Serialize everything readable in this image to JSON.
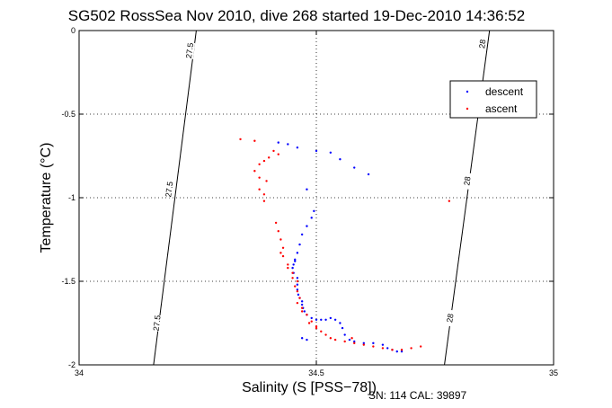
{
  "chart_data": {
    "type": "scatter",
    "title": "SG502 RossSea Nov 2010, dive 268 started 19-Dec-2010 14:36:52",
    "xlabel": "Salinity (S [PSS−78])",
    "ylabel": "Temperature (°C)",
    "xlim": [
      34,
      35
    ],
    "ylim": [
      -2,
      0
    ],
    "xticks": [
      "34",
      "34.5",
      "35"
    ],
    "yticks": [
      "0",
      "-0.5",
      "-1",
      "-1.5",
      "-2"
    ],
    "xtick_values": [
      34,
      34.5,
      35
    ],
    "ytick_values": [
      0,
      -0.5,
      -1,
      -1.5,
      -2
    ],
    "grid": true,
    "legend_position": "top-right",
    "footnote": "SN: 114  CAL: 39897",
    "contours": [
      {
        "label": "27.5",
        "points": [
          [
            34.157,
            -2
          ],
          [
            34.247,
            0
          ]
        ],
        "label_positions": [
          [
            34.233,
            -0.12
          ],
          [
            34.19,
            -0.95
          ],
          [
            34.164,
            -1.75
          ]
        ]
      },
      {
        "label": "28",
        "points": [
          [
            34.77,
            -2
          ],
          [
            34.865,
            0
          ]
        ],
        "label_positions": [
          [
            34.85,
            -0.08
          ],
          [
            34.818,
            -0.9
          ],
          [
            34.782,
            -1.72
          ]
        ]
      }
    ],
    "series": [
      {
        "name": "descent",
        "color": "#0000ff",
        "points": [
          [
            34.42,
            -0.67
          ],
          [
            34.44,
            -0.68
          ],
          [
            34.46,
            -0.7
          ],
          [
            34.5,
            -0.72
          ],
          [
            34.53,
            -0.73
          ],
          [
            34.55,
            -0.77
          ],
          [
            34.58,
            -0.82
          ],
          [
            34.61,
            -0.86
          ],
          [
            34.48,
            -0.95
          ],
          [
            34.495,
            -1.08
          ],
          [
            34.49,
            -1.12
          ],
          [
            34.48,
            -1.17
          ],
          [
            34.47,
            -1.22
          ],
          [
            34.465,
            -1.28
          ],
          [
            34.46,
            -1.33
          ],
          [
            34.455,
            -1.37
          ],
          [
            34.452,
            -1.4
          ],
          [
            34.45,
            -1.42
          ],
          [
            34.452,
            -1.45
          ],
          [
            34.46,
            -1.48
          ],
          [
            34.46,
            -1.55
          ],
          [
            34.462,
            -1.58
          ],
          [
            34.465,
            -1.6
          ],
          [
            34.47,
            -1.62
          ],
          [
            34.47,
            -1.64
          ],
          [
            34.472,
            -1.66
          ],
          [
            34.475,
            -1.68
          ],
          [
            34.48,
            -1.7
          ],
          [
            34.49,
            -1.72
          ],
          [
            34.5,
            -1.73
          ],
          [
            34.51,
            -1.73
          ],
          [
            34.52,
            -1.73
          ],
          [
            34.53,
            -1.72
          ],
          [
            34.54,
            -1.73
          ],
          [
            34.55,
            -1.75
          ],
          [
            34.555,
            -1.78
          ],
          [
            34.56,
            -1.82
          ],
          [
            34.57,
            -1.85
          ],
          [
            34.58,
            -1.86
          ],
          [
            34.6,
            -1.87
          ],
          [
            34.62,
            -1.87
          ],
          [
            34.64,
            -1.88
          ],
          [
            34.65,
            -1.9
          ],
          [
            34.66,
            -1.91
          ],
          [
            34.67,
            -1.92
          ],
          [
            34.68,
            -1.92
          ],
          [
            34.47,
            -1.84
          ],
          [
            34.48,
            -1.85
          ],
          [
            34.46,
            -1.52
          ],
          [
            34.455,
            -1.38
          ]
        ]
      },
      {
        "name": "ascent",
        "color": "#ff0000",
        "points": [
          [
            34.34,
            -0.65
          ],
          [
            34.37,
            -0.66
          ],
          [
            34.41,
            -0.72
          ],
          [
            34.42,
            -0.74
          ],
          [
            34.4,
            -0.76
          ],
          [
            34.39,
            -0.78
          ],
          [
            34.38,
            -0.8
          ],
          [
            34.37,
            -0.84
          ],
          [
            34.38,
            -0.88
          ],
          [
            34.395,
            -0.9
          ],
          [
            34.38,
            -0.95
          ],
          [
            34.39,
            -0.98
          ],
          [
            34.39,
            -1.02
          ],
          [
            34.415,
            -1.15
          ],
          [
            34.42,
            -1.2
          ],
          [
            34.425,
            -1.25
          ],
          [
            34.43,
            -1.3
          ],
          [
            34.425,
            -1.33
          ],
          [
            34.43,
            -1.35
          ],
          [
            34.44,
            -1.4
          ],
          [
            34.45,
            -1.45
          ],
          [
            34.45,
            -1.48
          ],
          [
            34.46,
            -1.5
          ],
          [
            34.455,
            -1.53
          ],
          [
            34.46,
            -1.56
          ],
          [
            34.465,
            -1.6
          ],
          [
            34.46,
            -1.63
          ],
          [
            34.47,
            -1.66
          ],
          [
            34.48,
            -1.7
          ],
          [
            34.49,
            -1.74
          ],
          [
            34.5,
            -1.77
          ],
          [
            34.51,
            -1.8
          ],
          [
            34.52,
            -1.82
          ],
          [
            34.53,
            -1.84
          ],
          [
            34.54,
            -1.85
          ],
          [
            34.56,
            -1.86
          ],
          [
            34.58,
            -1.87
          ],
          [
            34.6,
            -1.88
          ],
          [
            34.62,
            -1.89
          ],
          [
            34.64,
            -1.9
          ],
          [
            34.66,
            -1.91
          ],
          [
            34.68,
            -1.91
          ],
          [
            34.7,
            -1.9
          ],
          [
            34.72,
            -1.89
          ],
          [
            34.78,
            -1.02
          ],
          [
            34.575,
            -1.84
          ],
          [
            34.5,
            -1.78
          ],
          [
            34.485,
            -1.75
          ],
          [
            34.47,
            -1.68
          ],
          [
            34.44,
            -1.42
          ]
        ]
      }
    ]
  }
}
